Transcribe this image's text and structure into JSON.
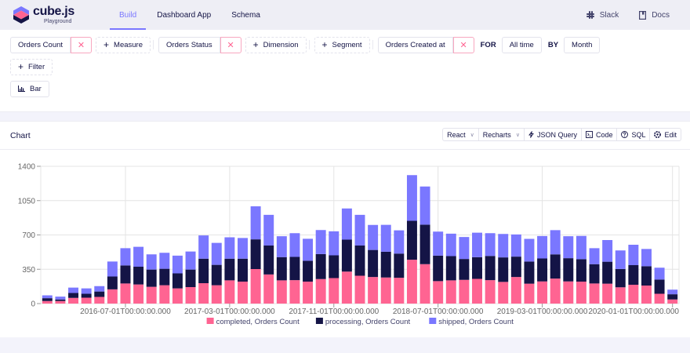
{
  "header": {
    "logo_name": "cube.js",
    "logo_sub": "Playground",
    "nav": [
      {
        "label": "Build",
        "active": true
      },
      {
        "label": "Dashboard App",
        "active": false
      },
      {
        "label": "Schema",
        "active": false
      }
    ],
    "links": [
      {
        "label": "Slack",
        "icon": "slack-icon"
      },
      {
        "label": "Docs",
        "icon": "book-icon"
      }
    ]
  },
  "query": {
    "measure": "Orders Count",
    "add_measure": "Measure",
    "dimension": "Orders Status",
    "add_dimension": "Dimension",
    "add_segment": "Segment",
    "time_dimension": "Orders Created at",
    "for_label": "FOR",
    "date_range": "All time",
    "by_label": "BY",
    "granularity": "Month",
    "add_filter": "Filter",
    "chart_type": "Bar",
    "remove_symbol": "✕",
    "plus_symbol": "+"
  },
  "card": {
    "title": "Chart",
    "toolbar": {
      "framework": "React",
      "library": "Recharts",
      "json_query": "JSON Query",
      "code": "Code",
      "sql": "SQL",
      "edit": "Edit"
    }
  },
  "colors": {
    "completed": "#ff6492",
    "processing": "#141446",
    "shipped": "#7a77ff",
    "accent": "#7a77ff"
  },
  "chart_data": {
    "type": "bar",
    "stacked": true,
    "title": "",
    "xlabel": "",
    "ylabel": "",
    "ylim": [
      0,
      1400
    ],
    "yticks": [
      0,
      350,
      700,
      1050,
      1400
    ],
    "grid": true,
    "legend_position": "bottom",
    "x_tick_labels": [
      "2016-07-01T00:00:00.000",
      "2017-03-01T00:00:00.000",
      "2017-11-01T00:00:00.000",
      "2018-07-01T00:00:00.000",
      "2019-03-01T00:00:00.000",
      "2020-01-01T00:00:00.000"
    ],
    "categories": [
      "2016-01",
      "2016-02",
      "2016-03",
      "2016-04",
      "2016-05",
      "2016-06",
      "2016-07",
      "2016-08",
      "2016-09",
      "2016-10",
      "2016-11",
      "2016-12",
      "2017-01",
      "2017-02",
      "2017-03",
      "2017-04",
      "2017-05",
      "2017-06",
      "2017-07",
      "2017-08",
      "2017-09",
      "2017-10",
      "2017-11",
      "2017-12",
      "2018-01",
      "2018-02",
      "2018-03",
      "2018-04",
      "2018-05",
      "2018-06",
      "2018-07",
      "2018-08",
      "2018-09",
      "2018-10",
      "2018-11",
      "2018-12",
      "2019-01",
      "2019-02",
      "2019-03",
      "2019-04",
      "2019-05",
      "2019-06",
      "2019-07",
      "2019-08",
      "2019-09",
      "2019-10",
      "2019-11",
      "2019-12",
      "2020-01"
    ],
    "series": [
      {
        "name": "completed, Orders Count",
        "values": [
          26,
          26,
          58,
          60,
          68,
          145,
          205,
          195,
          171,
          187,
          155,
          168,
          208,
          187,
          237,
          224,
          352,
          297,
          237,
          239,
          224,
          250,
          260,
          326,
          284,
          271,
          266,
          263,
          447,
          402,
          229,
          237,
          242,
          252,
          239,
          221,
          271,
          203,
          226,
          255,
          226,
          224,
          205,
          203,
          166,
          192,
          184,
          100,
          42
        ]
      },
      {
        "name": "processing, Orders Count",
        "values": [
          29,
          16,
          50,
          40,
          55,
          131,
          184,
          181,
          176,
          168,
          153,
          179,
          250,
          208,
          221,
          234,
          303,
          295,
          237,
          237,
          213,
          255,
          232,
          326,
          308,
          276,
          263,
          247,
          397,
          403,
          260,
          247,
          213,
          221,
          247,
          250,
          208,
          226,
          234,
          247,
          237,
          229,
          197,
          224,
          187,
          200,
          197,
          145,
          53
        ]
      },
      {
        "name": "shipped, Orders Count",
        "values": [
          29,
          29,
          55,
          55,
          55,
          153,
          176,
          203,
          155,
          163,
          181,
          184,
          237,
          224,
          218,
          211,
          337,
          313,
          213,
          242,
          224,
          245,
          245,
          318,
          313,
          255,
          274,
          237,
          466,
          389,
          245,
          229,
          224,
          250,
          232,
          239,
          226,
          231,
          229,
          247,
          224,
          237,
          163,
          221,
          189,
          208,
          176,
          121,
          47
        ]
      }
    ]
  }
}
